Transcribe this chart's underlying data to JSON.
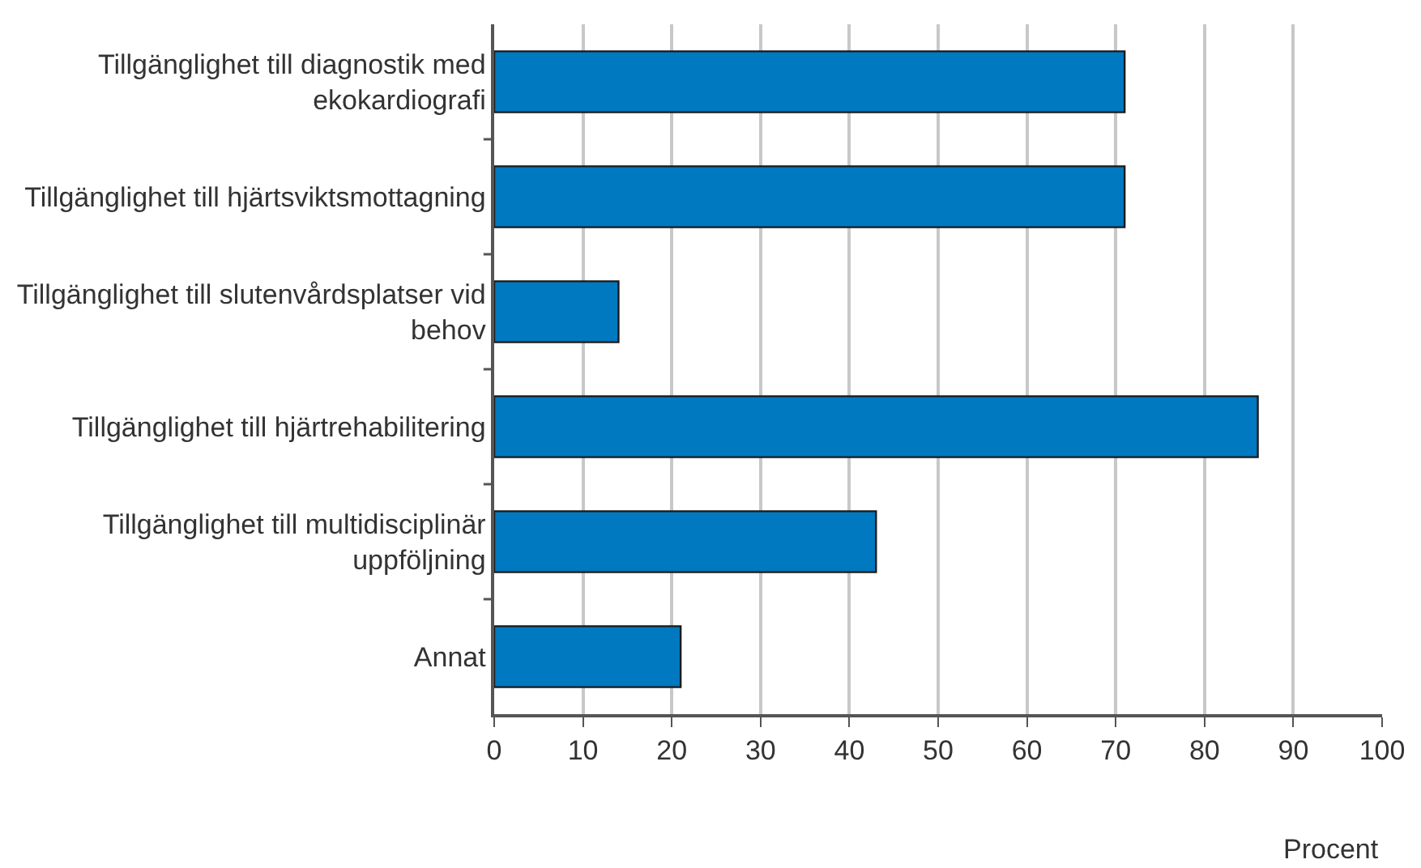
{
  "chart_data": {
    "type": "bar",
    "orientation": "horizontal",
    "categories": [
      "Tillgänglighet till diagnostik med ekokardiografi",
      "Tillgänglighet till hjärtsviktsmottagning",
      "Tillgänglighet till slutenvårdsplatser vid behov",
      "Tillgänglighet till hjärtrehabilitering",
      "Tillgänglighet till multidisciplinär uppföljning",
      "Annat"
    ],
    "values": [
      71,
      71,
      14,
      86,
      43,
      21
    ],
    "color": "#0079c1",
    "xlabel": "Procent",
    "xlim": [
      0,
      100
    ],
    "xticks": [
      0,
      10,
      20,
      30,
      40,
      50,
      60,
      70,
      80,
      90,
      100
    ],
    "grid": "x",
    "legend": false
  }
}
